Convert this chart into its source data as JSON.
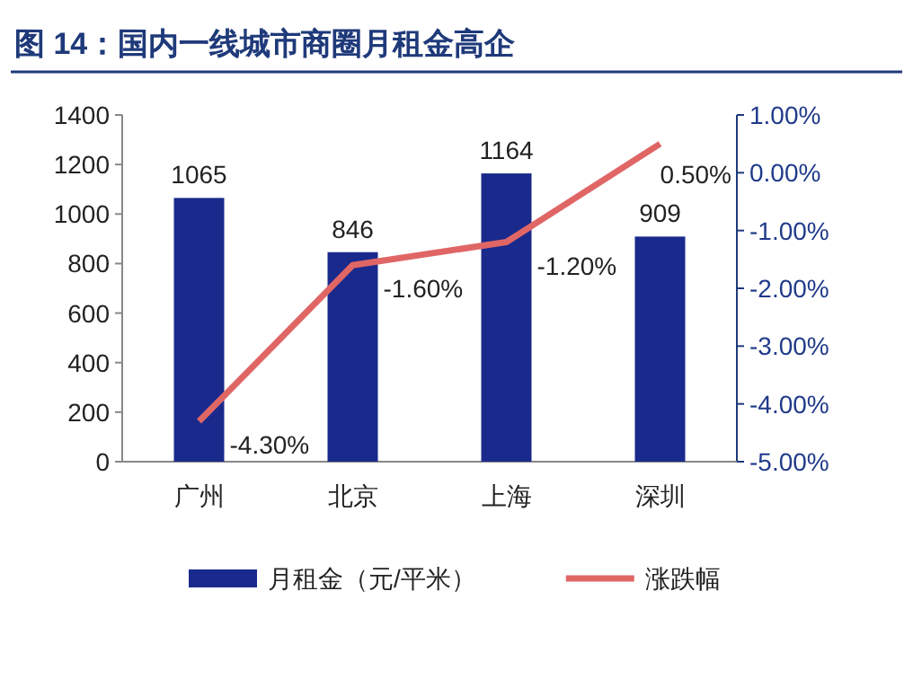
{
  "chart_data": {
    "type": "bar",
    "title": "图 14：国内一线城市商圈月租金高企",
    "categories": [
      "广州",
      "北京",
      "上海",
      "深圳"
    ],
    "series": [
      {
        "name": "月租金（元/平米）",
        "color": "#1a2a8c",
        "values": [
          1065,
          846,
          1164,
          909
        ],
        "value_labels": [
          "1065",
          "846",
          "1164",
          "909"
        ]
      },
      {
        "name": "涨跌幅",
        "type": "line",
        "axis": "y2",
        "color": "#e06666",
        "values": [
          -4.3,
          -1.6,
          -1.2,
          0.5
        ],
        "value_labels": [
          "-4.30%",
          "-1.60%",
          "-1.20%",
          "0.50%"
        ]
      }
    ],
    "ylim": [
      0,
      1400
    ],
    "yticks": [
      0,
      200,
      400,
      600,
      800,
      1000,
      1200,
      1400
    ],
    "y2lim": [
      -5,
      1
    ],
    "y2ticks": [
      {
        "value": -5,
        "label": "-5.00%"
      },
      {
        "value": -4,
        "label": "-4.00%"
      },
      {
        "value": -3,
        "label": "-3.00%"
      },
      {
        "value": -2,
        "label": "-2.00%"
      },
      {
        "value": -1,
        "label": "-1.00%"
      },
      {
        "value": 0,
        "label": "0.00%"
      },
      {
        "value": 1,
        "label": "1.00%"
      }
    ],
    "legend": "bottom",
    "grid": false
  }
}
